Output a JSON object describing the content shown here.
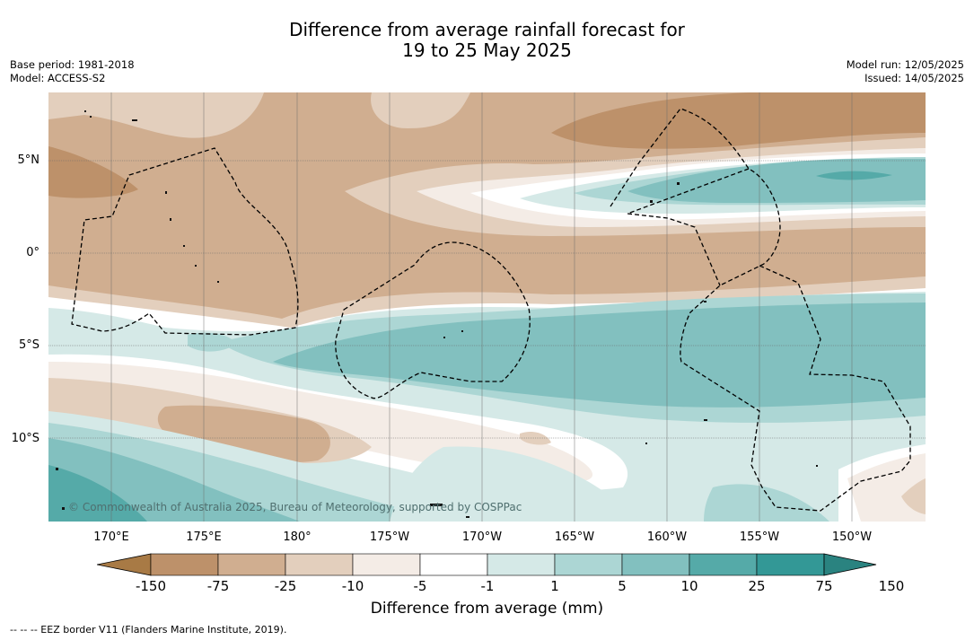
{
  "title": {
    "line1": "Difference from average rainfall forecast for",
    "line2": "19 to 25 May 2025"
  },
  "meta_left": {
    "base_period": "Base period: 1981-2018",
    "model": "Model: ACCESS-S2"
  },
  "meta_right": {
    "model_run": "Model run: 12/05/2025",
    "issued": "Issued: 14/05/2025"
  },
  "map": {
    "copyright": "© Commonwealth of Australia 2025, Bureau of Meteorology, supported by COSPPac",
    "lat_labels": [
      "5°N",
      "0°",
      "5°S",
      "10°S"
    ],
    "lon_labels": [
      "170°E",
      "175°E",
      "180°",
      "175°W",
      "170°W",
      "165°W",
      "160°W",
      "155°W",
      "150°W"
    ]
  },
  "colorbar": {
    "ticks": [
      "-150",
      "-75",
      "-25",
      "-10",
      "-5",
      "-1",
      "1",
      "5",
      "10",
      "25",
      "75",
      "150"
    ],
    "colors": [
      "#a87a45",
      "#bd916a",
      "#d0ae90",
      "#e3cfbd",
      "#f4ece6",
      "#ffffff",
      "#d5e9e7",
      "#acd6d4",
      "#82c0bf",
      "#55aaa8",
      "#339896",
      "#2a8380"
    ],
    "title": "Difference from average (mm)"
  },
  "footnote": "--  --  -- EEZ border V11 (Flanders Marine Institute, 2019)."
}
